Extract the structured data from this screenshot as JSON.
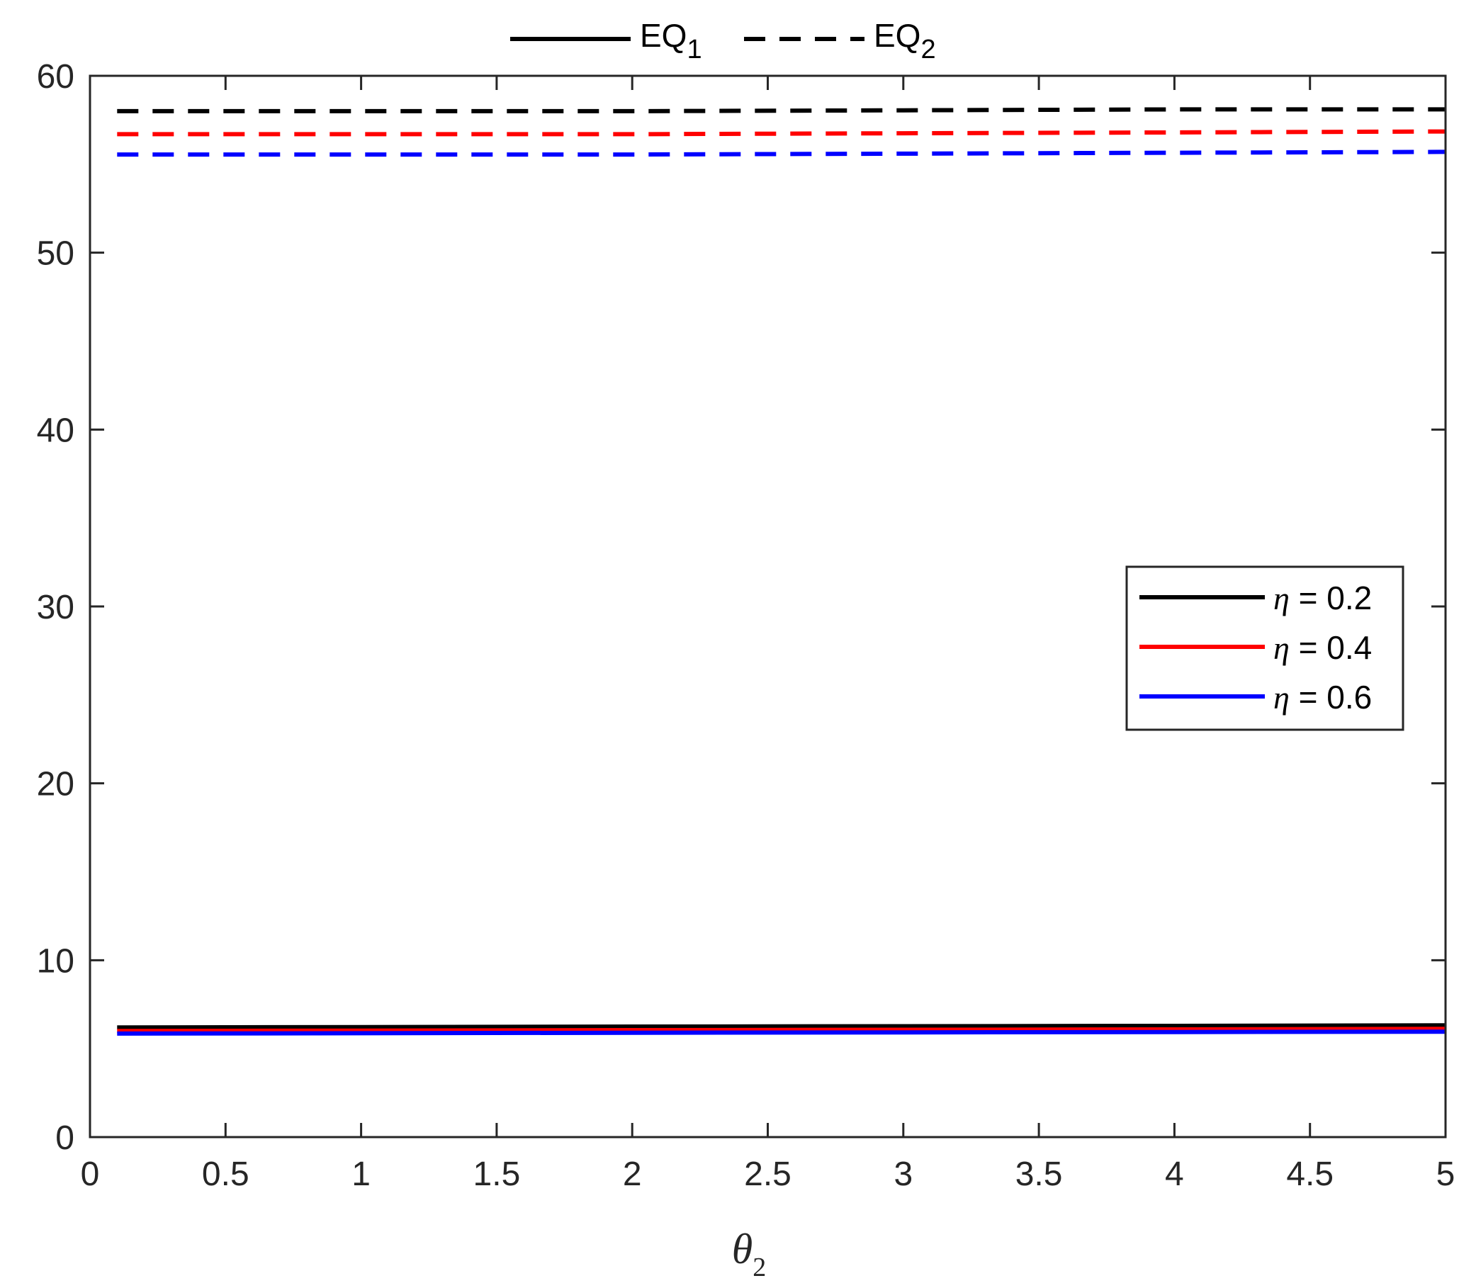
{
  "chart_data": {
    "type": "line",
    "xlabel": "θ",
    "xlabel_sub": "2",
    "ylabel": "",
    "title": "",
    "xlim": [
      0,
      5
    ],
    "ylim": [
      0,
      60
    ],
    "xticks": [
      0,
      0.5,
      1,
      1.5,
      2,
      2.5,
      3,
      3.5,
      4,
      4.5,
      5
    ],
    "xtick_labels": [
      "0",
      "0.5",
      "1",
      "1.5",
      "2",
      "2.5",
      "3",
      "3.5",
      "4",
      "4.5",
      "5"
    ],
    "yticks": [
      0,
      10,
      20,
      30,
      40,
      50,
      60
    ],
    "ytick_labels": [
      "0",
      "10",
      "20",
      "30",
      "40",
      "50",
      "60"
    ],
    "grid": false,
    "style_legend": {
      "placement": "top-outside",
      "entries": [
        {
          "label": "EQ",
          "sub": "1",
          "style": "solid",
          "color": "#000000"
        },
        {
          "label": "EQ",
          "sub": "2",
          "style": "dashed",
          "color": "#000000"
        }
      ]
    },
    "color_legend": {
      "placement": "right-middle",
      "entries": [
        {
          "symbol": "η",
          "text": " = 0.2",
          "color": "#000000"
        },
        {
          "symbol": "η",
          "text": " = 0.4",
          "color": "#ff0000"
        },
        {
          "symbol": "η",
          "text": " = 0.6",
          "color": "#0000ff"
        }
      ]
    },
    "x": [
      0.1,
      1,
      2,
      3,
      4,
      5
    ],
    "series": [
      {
        "name": "η = 0.2",
        "group": "EQ1",
        "color": "#000000",
        "style": "solid",
        "values": [
          6.2,
          6.22,
          6.25,
          6.27,
          6.29,
          6.32
        ]
      },
      {
        "name": "η = 0.4",
        "group": "EQ1",
        "color": "#ff0000",
        "style": "solid",
        "values": [
          6.0,
          6.02,
          6.05,
          6.07,
          6.09,
          6.12
        ]
      },
      {
        "name": "η = 0.6",
        "group": "EQ1",
        "color": "#0000ff",
        "style": "solid",
        "values": [
          5.85,
          5.87,
          5.9,
          5.92,
          5.94,
          5.96
        ]
      },
      {
        "name": "η = 0.2",
        "group": "EQ2",
        "color": "#000000",
        "style": "dashed",
        "values": [
          58.0,
          58.0,
          58.0,
          58.05,
          58.1,
          58.1
        ]
      },
      {
        "name": "η = 0.4",
        "group": "EQ2",
        "color": "#ff0000",
        "style": "dashed",
        "values": [
          56.7,
          56.7,
          56.7,
          56.75,
          56.8,
          56.85
        ]
      },
      {
        "name": "η = 0.6",
        "group": "EQ2",
        "color": "#0000ff",
        "style": "dashed",
        "values": [
          55.55,
          55.55,
          55.55,
          55.6,
          55.65,
          55.7
        ]
      }
    ]
  }
}
